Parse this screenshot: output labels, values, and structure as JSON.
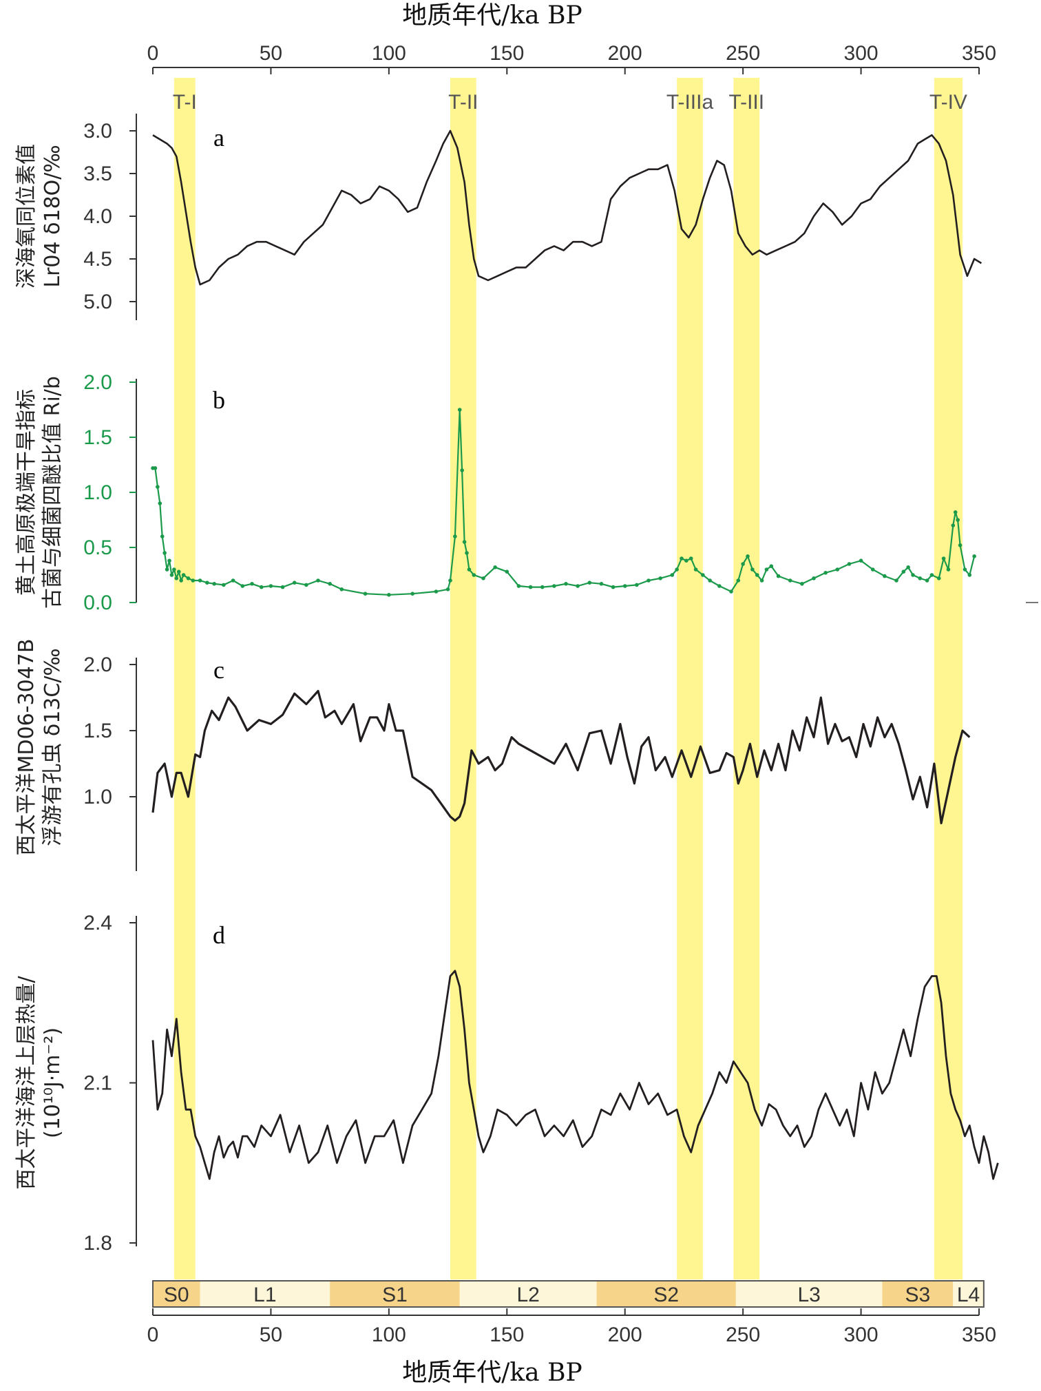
{
  "figure": {
    "x_axis_title_top": "地质年代/ka BP",
    "x_axis_title_bottom": "地质年代/ka BP",
    "x_ticks": [
      0,
      50,
      100,
      150,
      200,
      250,
      300,
      350
    ]
  },
  "colors": {
    "band": "#fff591",
    "series_dark": "#231f20",
    "series_green": "#1a9a4a",
    "strat_s": "#f6d58a",
    "strat_l": "#fdf6d8"
  },
  "terminations": [
    {
      "label": "T-I",
      "start": 9,
      "end": 18
    },
    {
      "label": "T-II",
      "start": 126,
      "end": 137
    },
    {
      "label": "T-IIIa",
      "start": 222,
      "end": 233
    },
    {
      "label": "T-III",
      "start": 246,
      "end": 257
    },
    {
      "label": "T-IV",
      "start": 331,
      "end": 343
    }
  ],
  "strat_units": [
    {
      "label": "S0",
      "start": 0,
      "end": 20,
      "kind": "S"
    },
    {
      "label": "L1",
      "start": 20,
      "end": 75,
      "kind": "L"
    },
    {
      "label": "S1",
      "start": 75,
      "end": 130,
      "kind": "S"
    },
    {
      "label": "L2",
      "start": 130,
      "end": 188,
      "kind": "L"
    },
    {
      "label": "S2",
      "start": 188,
      "end": 247,
      "kind": "S"
    },
    {
      "label": "L3",
      "start": 247,
      "end": 309,
      "kind": "L"
    },
    {
      "label": "S3",
      "start": 309,
      "end": 339,
      "kind": "S"
    },
    {
      "label": "L4",
      "start": 339,
      "end": 352,
      "kind": "L"
    }
  ],
  "chart_data": [
    {
      "type": "line",
      "panel": "a",
      "ylabel_line1": "深海氧同位素值",
      "ylabel_line2": "Lr04 δ18O/‰",
      "yticks": [
        3.0,
        3.5,
        4.0,
        4.5,
        5.0
      ],
      "ylim": [
        3.0,
        5.0
      ],
      "y_inverted": true,
      "series": [
        {
          "x": [
            0,
            3,
            6,
            8,
            10,
            12,
            14,
            16,
            18,
            20,
            24,
            28,
            32,
            36,
            40,
            44,
            48,
            52,
            56,
            60,
            64,
            68,
            72,
            76,
            80,
            84,
            88,
            92,
            96,
            100,
            104,
            108,
            112,
            116,
            120,
            123,
            126,
            129,
            132,
            134,
            136,
            138,
            142,
            146,
            150,
            154,
            158,
            162,
            166,
            170,
            174,
            178,
            182,
            186,
            190,
            194,
            198,
            202,
            206,
            210,
            214,
            218,
            221,
            224,
            227,
            230,
            233,
            236,
            239,
            242,
            245,
            248,
            251,
            254,
            257,
            260,
            264,
            268,
            272,
            276,
            280,
            284,
            288,
            292,
            296,
            300,
            304,
            308,
            312,
            316,
            320,
            324,
            327,
            330,
            333,
            336,
            339,
            342,
            345,
            348,
            351
          ],
          "y": [
            3.05,
            3.1,
            3.15,
            3.2,
            3.3,
            3.6,
            3.95,
            4.3,
            4.6,
            4.8,
            4.75,
            4.6,
            4.5,
            4.45,
            4.35,
            4.3,
            4.3,
            4.35,
            4.4,
            4.45,
            4.3,
            4.2,
            4.1,
            3.9,
            3.7,
            3.75,
            3.85,
            3.8,
            3.65,
            3.7,
            3.8,
            3.95,
            3.9,
            3.6,
            3.35,
            3.15,
            3.0,
            3.2,
            3.6,
            4.1,
            4.5,
            4.7,
            4.75,
            4.7,
            4.65,
            4.6,
            4.6,
            4.5,
            4.4,
            4.35,
            4.4,
            4.3,
            4.3,
            4.35,
            4.3,
            3.8,
            3.65,
            3.55,
            3.5,
            3.45,
            3.45,
            3.4,
            3.7,
            4.15,
            4.25,
            4.1,
            3.8,
            3.55,
            3.35,
            3.4,
            3.7,
            4.2,
            4.35,
            4.45,
            4.4,
            4.45,
            4.4,
            4.35,
            4.3,
            4.2,
            4.0,
            3.85,
            3.95,
            4.1,
            4.0,
            3.85,
            3.8,
            3.65,
            3.55,
            3.45,
            3.35,
            3.15,
            3.1,
            3.05,
            3.15,
            3.35,
            3.75,
            4.45,
            4.7,
            4.5,
            4.55
          ]
        }
      ]
    },
    {
      "type": "line",
      "panel": "b",
      "ylabel_line1": "黄土高原极端干旱指标",
      "ylabel_line2": "古菌与细菌四醚比值 Ri/b",
      "yticks": [
        0.0,
        0.5,
        1.0,
        1.5,
        2.0
      ],
      "ylim": [
        0.0,
        2.0
      ],
      "series": [
        {
          "x": [
            0,
            1,
            2,
            3,
            4,
            5,
            6,
            7,
            8,
            9,
            10,
            11,
            12,
            13,
            15,
            17,
            20,
            23,
            26,
            30,
            34,
            38,
            42,
            46,
            50,
            55,
            60,
            65,
            70,
            75,
            80,
            90,
            100,
            110,
            120,
            125,
            126,
            128,
            130,
            131,
            132,
            133,
            134,
            136,
            140,
            145,
            150,
            155,
            160,
            165,
            170,
            175,
            180,
            185,
            190,
            195,
            200,
            205,
            210,
            215,
            220,
            222,
            224,
            226,
            228,
            230,
            233,
            236,
            240,
            245,
            248,
            250,
            252,
            254,
            256,
            258,
            260,
            262,
            265,
            270,
            275,
            280,
            285,
            290,
            295,
            300,
            305,
            310,
            315,
            318,
            320,
            322,
            325,
            328,
            330,
            333,
            335,
            337,
            339,
            340,
            341,
            342,
            344,
            346,
            348
          ],
          "y": [
            1.22,
            1.22,
            1.05,
            0.9,
            0.6,
            0.45,
            0.3,
            0.38,
            0.25,
            0.3,
            0.22,
            0.28,
            0.2,
            0.25,
            0.22,
            0.2,
            0.2,
            0.18,
            0.17,
            0.16,
            0.2,
            0.15,
            0.17,
            0.14,
            0.15,
            0.14,
            0.18,
            0.16,
            0.2,
            0.17,
            0.12,
            0.08,
            0.07,
            0.08,
            0.1,
            0.12,
            0.2,
            0.6,
            1.75,
            1.2,
            0.55,
            0.45,
            0.3,
            0.25,
            0.22,
            0.32,
            0.28,
            0.15,
            0.14,
            0.14,
            0.15,
            0.17,
            0.15,
            0.18,
            0.17,
            0.14,
            0.15,
            0.16,
            0.2,
            0.22,
            0.25,
            0.3,
            0.4,
            0.38,
            0.4,
            0.3,
            0.25,
            0.2,
            0.15,
            0.1,
            0.2,
            0.35,
            0.42,
            0.3,
            0.25,
            0.2,
            0.3,
            0.33,
            0.24,
            0.2,
            0.17,
            0.22,
            0.27,
            0.3,
            0.35,
            0.38,
            0.3,
            0.24,
            0.2,
            0.28,
            0.32,
            0.25,
            0.22,
            0.2,
            0.25,
            0.22,
            0.4,
            0.3,
            0.7,
            0.82,
            0.75,
            0.52,
            0.3,
            0.25,
            0.42
          ]
        }
      ]
    },
    {
      "type": "line",
      "panel": "c",
      "ylabel_line1": "西太平洋MD06-3047B",
      "ylabel_line2": "浮游有孔虫 δ13C/‰",
      "yticks": [
        1.0,
        1.5,
        2.0
      ],
      "ylim": [
        0.75,
        2.0
      ],
      "series": [
        {
          "x": [
            0,
            2,
            5,
            8,
            10,
            12,
            15,
            18,
            20,
            22,
            25,
            28,
            32,
            35,
            40,
            45,
            50,
            55,
            60,
            65,
            70,
            73,
            77,
            80,
            85,
            88,
            92,
            95,
            98,
            100,
            103,
            106,
            110,
            114,
            118,
            122,
            126,
            128,
            130,
            132,
            135,
            138,
            142,
            145,
            148,
            152,
            155,
            160,
            165,
            170,
            175,
            180,
            185,
            190,
            194,
            198,
            201,
            204,
            207,
            210,
            213,
            217,
            220,
            224,
            228,
            232,
            236,
            240,
            243,
            246,
            248,
            250,
            253,
            256,
            259,
            262,
            265,
            268,
            271,
            274,
            277,
            280,
            283,
            286,
            289,
            292,
            295,
            298,
            301,
            304,
            307,
            310,
            313,
            316,
            319,
            322,
            325,
            328,
            331,
            334,
            337,
            340,
            343,
            346
          ],
          "y": [
            0.88,
            1.18,
            1.25,
            1.0,
            1.18,
            1.18,
            1.0,
            1.32,
            1.3,
            1.5,
            1.65,
            1.58,
            1.75,
            1.68,
            1.5,
            1.58,
            1.55,
            1.62,
            1.78,
            1.7,
            1.8,
            1.6,
            1.65,
            1.55,
            1.7,
            1.42,
            1.6,
            1.6,
            1.5,
            1.7,
            1.5,
            1.5,
            1.15,
            1.1,
            1.05,
            0.95,
            0.85,
            0.82,
            0.85,
            0.95,
            1.35,
            1.25,
            1.3,
            1.2,
            1.25,
            1.45,
            1.4,
            1.35,
            1.3,
            1.25,
            1.4,
            1.2,
            1.48,
            1.5,
            1.25,
            1.55,
            1.3,
            1.1,
            1.38,
            1.45,
            1.2,
            1.3,
            1.15,
            1.35,
            1.15,
            1.38,
            1.18,
            1.2,
            1.33,
            1.3,
            1.1,
            1.2,
            1.4,
            1.15,
            1.35,
            1.2,
            1.4,
            1.2,
            1.5,
            1.35,
            1.6,
            1.45,
            1.75,
            1.4,
            1.55,
            1.42,
            1.45,
            1.3,
            1.55,
            1.38,
            1.6,
            1.45,
            1.55,
            1.4,
            1.2,
            0.98,
            1.15,
            0.92,
            1.25,
            0.8,
            1.05,
            1.3,
            1.5,
            1.45
          ]
        }
      ]
    },
    {
      "type": "line",
      "panel": "d",
      "ylabel_line1": "西太平洋海洋上层热量/",
      "ylabel_line2": "(10¹⁰J·m⁻²)",
      "yticks": [
        1.8,
        2.1,
        2.4
      ],
      "ylim": [
        1.8,
        2.4
      ],
      "series": [
        {
          "x": [
            0,
            2,
            4,
            6,
            8,
            10,
            12,
            14,
            16,
            18,
            20,
            22,
            24,
            26,
            28,
            30,
            32,
            34,
            36,
            38,
            40,
            43,
            46,
            50,
            54,
            58,
            62,
            66,
            70,
            74,
            78,
            82,
            86,
            90,
            94,
            98,
            102,
            106,
            110,
            114,
            118,
            121,
            124,
            126,
            128,
            130,
            132,
            134,
            136,
            138,
            140,
            143,
            146,
            150,
            154,
            158,
            162,
            166,
            170,
            174,
            178,
            182,
            186,
            190,
            194,
            198,
            202,
            206,
            210,
            214,
            218,
            222,
            225,
            228,
            231,
            234,
            237,
            240,
            243,
            246,
            249,
            252,
            255,
            258,
            261,
            264,
            267,
            270,
            273,
            276,
            279,
            282,
            285,
            288,
            291,
            294,
            297,
            300,
            303,
            306,
            309,
            312,
            315,
            318,
            321,
            324,
            327,
            330,
            332,
            334,
            336,
            338,
            340,
            342,
            344,
            346,
            348,
            350,
            352,
            354,
            356,
            358
          ],
          "y": [
            2.18,
            2.05,
            2.08,
            2.2,
            2.15,
            2.22,
            2.12,
            2.05,
            2.05,
            2.0,
            1.98,
            1.95,
            1.92,
            1.97,
            2.0,
            1.96,
            1.98,
            1.99,
            1.96,
            2.0,
            2.0,
            1.98,
            2.02,
            2.0,
            2.04,
            1.97,
            2.02,
            1.95,
            1.97,
            2.02,
            1.95,
            2.0,
            2.03,
            1.95,
            2.0,
            2.0,
            2.03,
            1.95,
            2.02,
            2.05,
            2.08,
            2.15,
            2.24,
            2.3,
            2.31,
            2.28,
            2.2,
            2.1,
            2.05,
            2.0,
            1.97,
            2.0,
            2.05,
            2.04,
            2.02,
            2.04,
            2.05,
            2.0,
            2.02,
            2.0,
            2.03,
            1.98,
            2.0,
            2.05,
            2.04,
            2.08,
            2.05,
            2.1,
            2.06,
            2.08,
            2.04,
            2.05,
            2.0,
            1.97,
            2.02,
            2.05,
            2.08,
            2.12,
            2.1,
            2.14,
            2.12,
            2.1,
            2.05,
            2.02,
            2.06,
            2.05,
            2.02,
            2.0,
            2.02,
            1.98,
            2.0,
            2.05,
            2.08,
            2.05,
            2.02,
            2.05,
            2.0,
            2.1,
            2.05,
            2.12,
            2.08,
            2.1,
            2.15,
            2.2,
            2.15,
            2.22,
            2.28,
            2.3,
            2.3,
            2.25,
            2.15,
            2.08,
            2.05,
            2.03,
            2.0,
            2.02,
            1.98,
            1.95,
            2.0,
            1.97,
            1.92,
            1.95
          ]
        }
      ]
    }
  ]
}
